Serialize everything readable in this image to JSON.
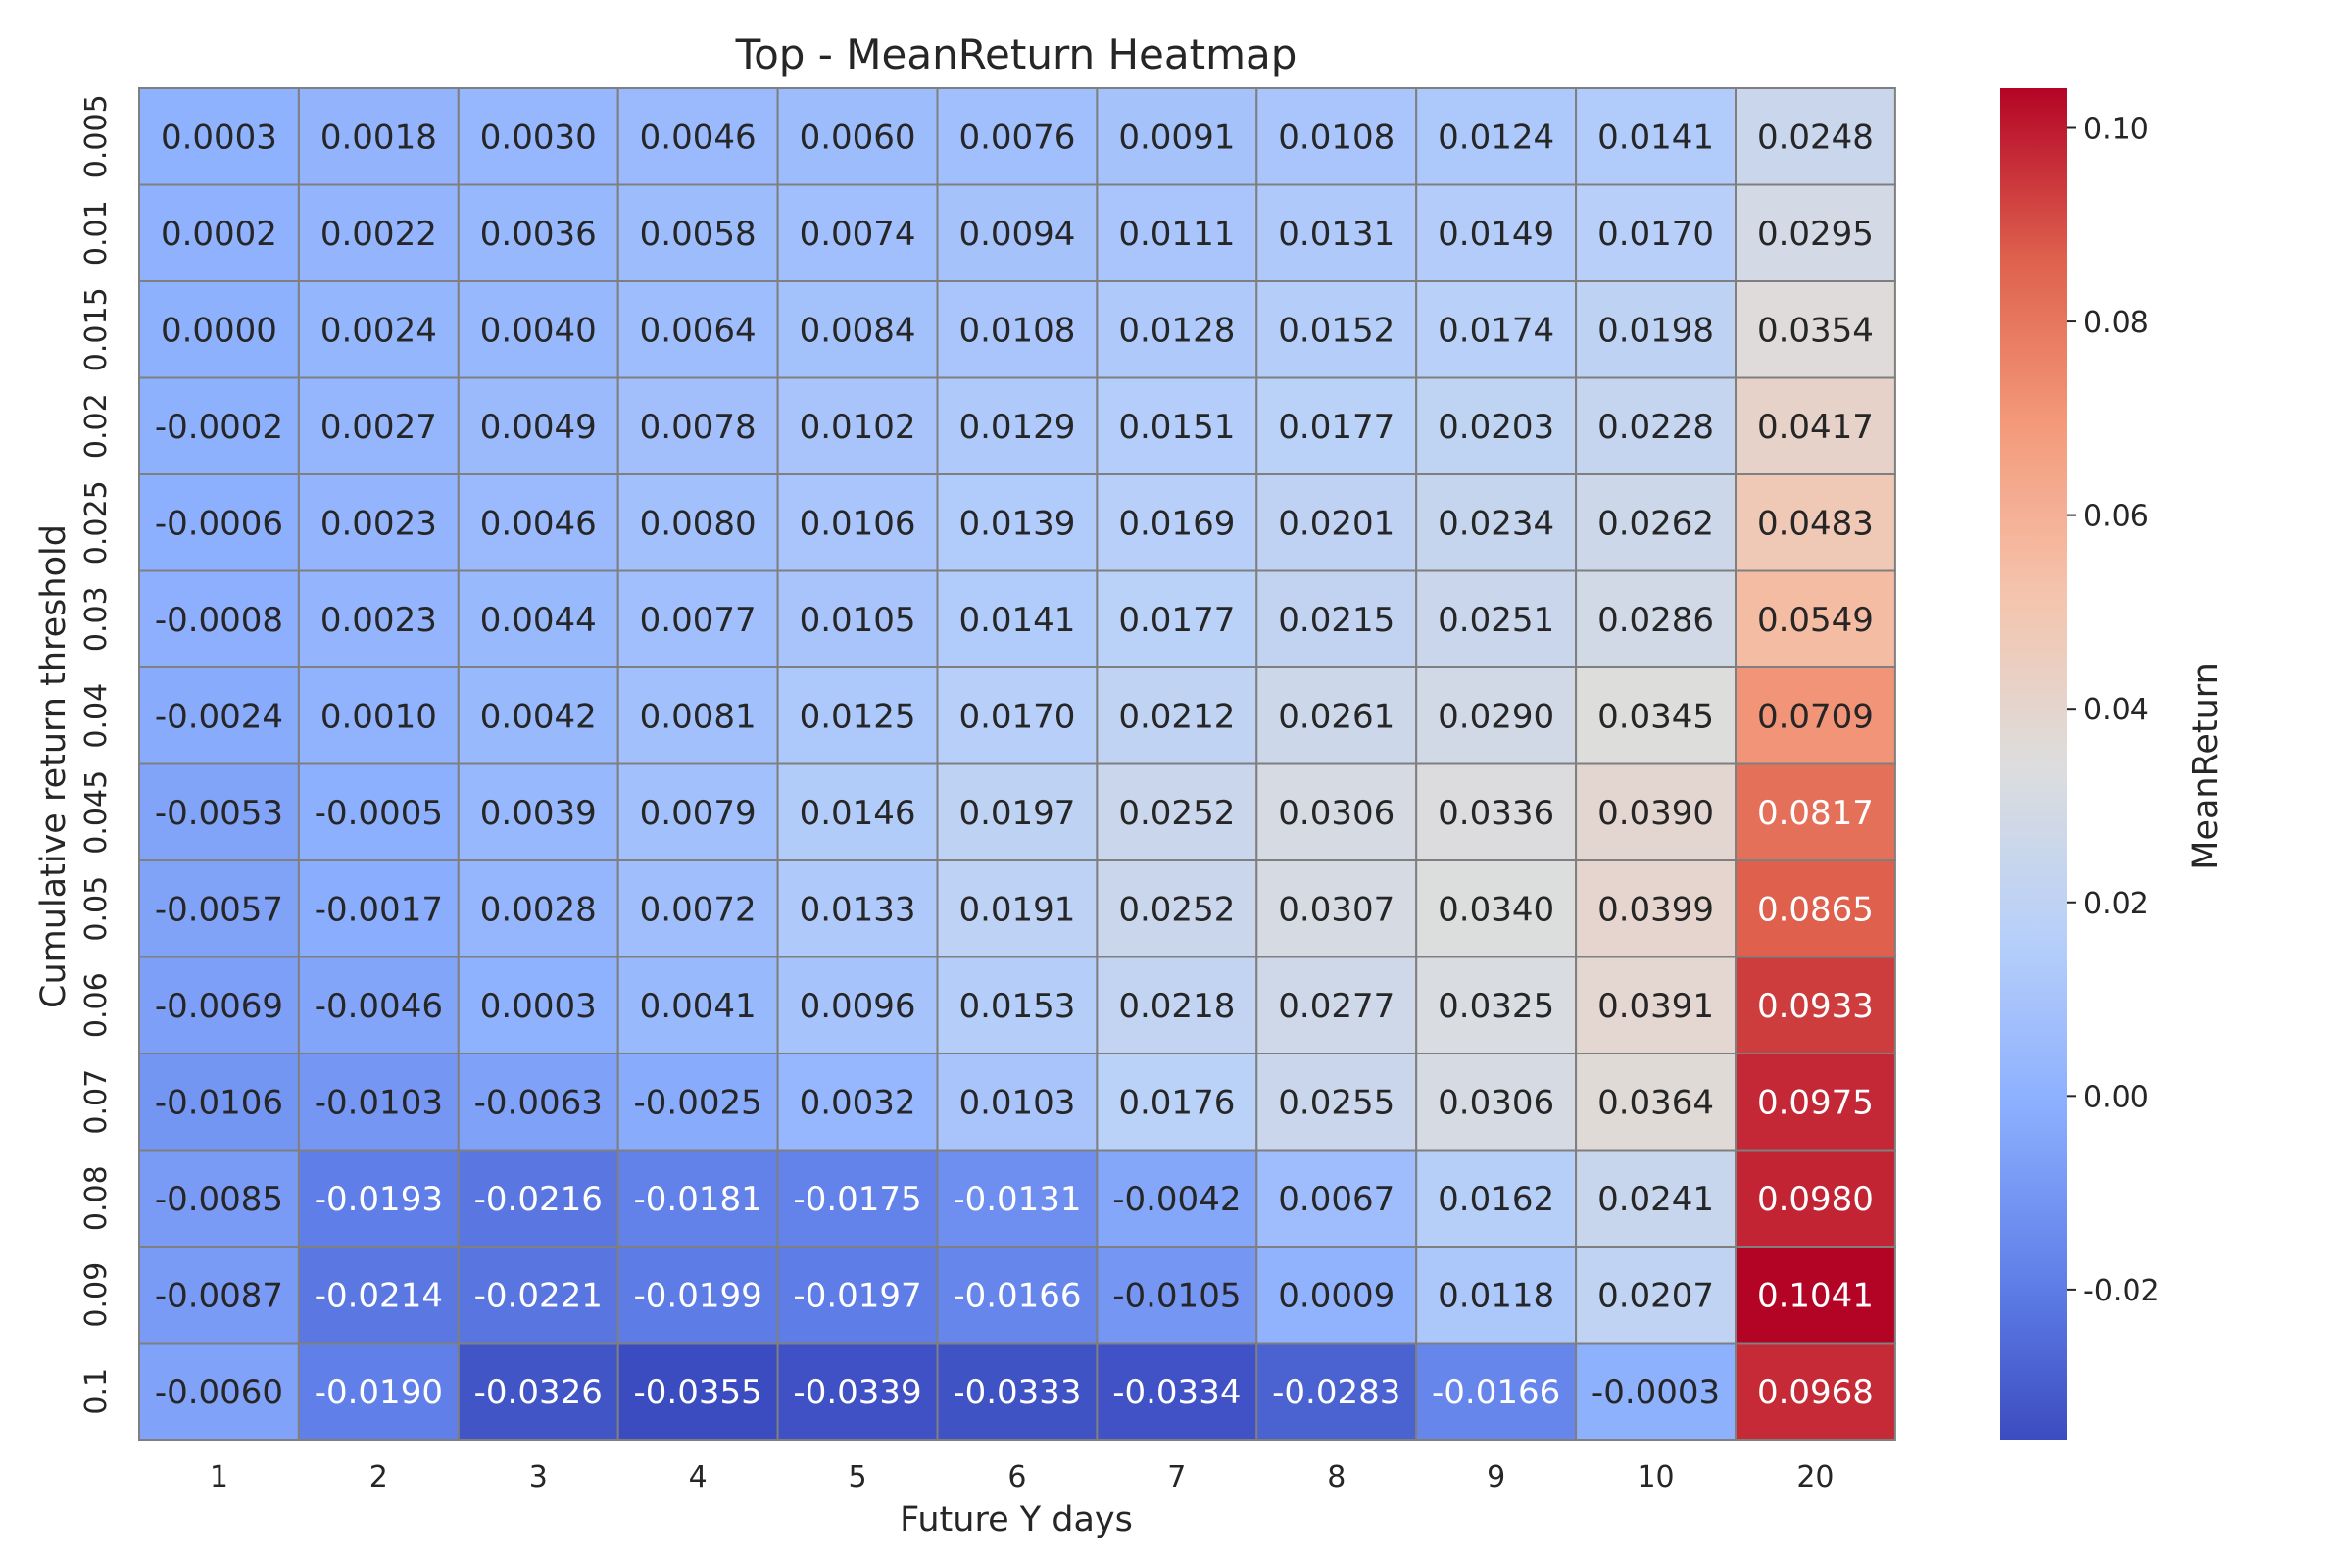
{
  "chart_data": {
    "type": "heatmap",
    "title": "Top - MeanReturn Heatmap",
    "xlabel": "Future Y days",
    "ylabel": "Cumulative return threshold",
    "colorbar_label": "MeanReturn",
    "colormap": "coolwarm",
    "vmin": -0.0355,
    "vmax": 0.1041,
    "x": [
      "1",
      "2",
      "3",
      "4",
      "5",
      "6",
      "7",
      "8",
      "9",
      "10",
      "20"
    ],
    "y": [
      "0.005",
      "0.01",
      "0.015",
      "0.02",
      "0.025",
      "0.03",
      "0.04",
      "0.045",
      "0.05",
      "0.06",
      "0.07",
      "0.08",
      "0.09",
      "0.1"
    ],
    "values": [
      [
        "0.0003",
        "0.0018",
        "0.0030",
        "0.0046",
        "0.0060",
        "0.0076",
        "0.0091",
        "0.0108",
        "0.0124",
        "0.0141",
        "0.0248"
      ],
      [
        "0.0002",
        "0.0022",
        "0.0036",
        "0.0058",
        "0.0074",
        "0.0094",
        "0.0111",
        "0.0131",
        "0.0149",
        "0.0170",
        "0.0295"
      ],
      [
        "0.0000",
        "0.0024",
        "0.0040",
        "0.0064",
        "0.0084",
        "0.0108",
        "0.0128",
        "0.0152",
        "0.0174",
        "0.0198",
        "0.0354"
      ],
      [
        "-0.0002",
        "0.0027",
        "0.0049",
        "0.0078",
        "0.0102",
        "0.0129",
        "0.0151",
        "0.0177",
        "0.0203",
        "0.0228",
        "0.0417"
      ],
      [
        "-0.0006",
        "0.0023",
        "0.0046",
        "0.0080",
        "0.0106",
        "0.0139",
        "0.0169",
        "0.0201",
        "0.0234",
        "0.0262",
        "0.0483"
      ],
      [
        "-0.0008",
        "0.0023",
        "0.0044",
        "0.0077",
        "0.0105",
        "0.0141",
        "0.0177",
        "0.0215",
        "0.0251",
        "0.0286",
        "0.0549"
      ],
      [
        "-0.0024",
        "0.0010",
        "0.0042",
        "0.0081",
        "0.0125",
        "0.0170",
        "0.0212",
        "0.0261",
        "0.0290",
        "0.0345",
        "0.0709"
      ],
      [
        "-0.0053",
        "-0.0005",
        "0.0039",
        "0.0079",
        "0.0146",
        "0.0197",
        "0.0252",
        "0.0306",
        "0.0336",
        "0.0390",
        "0.0817"
      ],
      [
        "-0.0057",
        "-0.0017",
        "0.0028",
        "0.0072",
        "0.0133",
        "0.0191",
        "0.0252",
        "0.0307",
        "0.0340",
        "0.0399",
        "0.0865"
      ],
      [
        "-0.0069",
        "-0.0046",
        "0.0003",
        "0.0041",
        "0.0096",
        "0.0153",
        "0.0218",
        "0.0277",
        "0.0325",
        "0.0391",
        "0.0933"
      ],
      [
        "-0.0106",
        "-0.0103",
        "-0.0063",
        "-0.0025",
        "0.0032",
        "0.0103",
        "0.0176",
        "0.0255",
        "0.0306",
        "0.0364",
        "0.0975"
      ],
      [
        "-0.0085",
        "-0.0193",
        "-0.0216",
        "-0.0181",
        "-0.0175",
        "-0.0131",
        "-0.0042",
        "0.0067",
        "0.0162",
        "0.0241",
        "0.0980"
      ],
      [
        "-0.0087",
        "-0.0214",
        "-0.0221",
        "-0.0199",
        "-0.0197",
        "-0.0166",
        "-0.0105",
        "0.0009",
        "0.0118",
        "0.0207",
        "0.1041"
      ],
      [
        "-0.0060",
        "-0.0190",
        "-0.0326",
        "-0.0355",
        "-0.0339",
        "-0.0333",
        "-0.0334",
        "-0.0283",
        "-0.0166",
        "-0.0003",
        "0.0968"
      ]
    ],
    "colorbar_ticks": [
      -0.02,
      0.0,
      0.02,
      0.04,
      0.06,
      0.08,
      0.1
    ],
    "colorbar_tick_labels": [
      "-0.02",
      "0.00",
      "0.02",
      "0.04",
      "0.06",
      "0.08",
      "0.10"
    ]
  }
}
